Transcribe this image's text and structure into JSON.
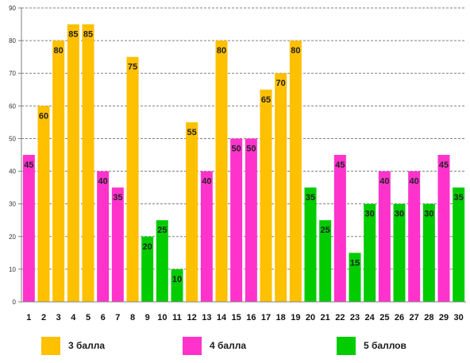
{
  "chart_data": {
    "type": "bar",
    "categories": [
      "1",
      "2",
      "3",
      "4",
      "5",
      "6",
      "7",
      "8",
      "9",
      "10",
      "11",
      "12",
      "13",
      "14",
      "15",
      "16",
      "17",
      "18",
      "19",
      "20",
      "21",
      "22",
      "23",
      "24",
      "25",
      "26",
      "27",
      "28",
      "29",
      "30"
    ],
    "values": [
      45,
      60,
      80,
      85,
      85,
      40,
      35,
      75,
      20,
      25,
      10,
      55,
      40,
      80,
      50,
      50,
      65,
      70,
      80,
      35,
      25,
      45,
      15,
      30,
      40,
      30,
      40,
      30,
      45,
      35
    ],
    "groups": [
      "4 балла",
      "3 балла",
      "3 балла",
      "3 балла",
      "3 балла",
      "4 балла",
      "4 балла",
      "3 балла",
      "5 баллов",
      "5 баллов",
      "5 баллов",
      "3 балла",
      "4 балла",
      "3 балла",
      "4 балла",
      "4 балла",
      "3 балла",
      "3 балла",
      "3 балла",
      "5 баллов",
      "5 баллов",
      "4 балла",
      "5 баллов",
      "5 баллов",
      "4 балла",
      "5 баллов",
      "4 балла",
      "5 баллов",
      "4 балла",
      "5 баллов"
    ],
    "series": [
      {
        "name": "3 балла",
        "color": "#FFC000"
      },
      {
        "name": "4 балла",
        "color": "#FF33CC"
      },
      {
        "name": "5 баллов",
        "color": "#00CC00"
      }
    ],
    "yticks": [
      "0",
      "10",
      "20",
      "30",
      "40",
      "50",
      "60",
      "70",
      "80",
      "90"
    ],
    "ylim": [
      0,
      90
    ],
    "grid": true,
    "legend_position": "bottom"
  }
}
